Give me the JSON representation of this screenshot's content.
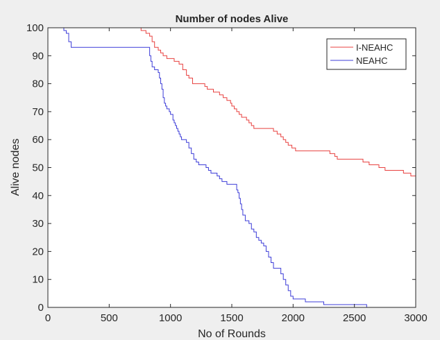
{
  "chart_data": {
    "type": "line",
    "title": "Number of nodes Alive",
    "xlabel": "No of Rounds",
    "ylabel": "Alive nodes",
    "xlim": [
      0,
      3000
    ],
    "ylim": [
      0,
      100
    ],
    "xticks": [
      0,
      500,
      1000,
      1500,
      2000,
      2500,
      3000
    ],
    "yticks": [
      0,
      10,
      20,
      30,
      40,
      50,
      60,
      70,
      80,
      90,
      100
    ],
    "grid": false,
    "legend_position": "top-right",
    "series": [
      {
        "name": "I-NEAHC",
        "color": "#e8403f",
        "step": true,
        "points": [
          [
            0,
            100
          ],
          [
            700,
            100
          ],
          [
            760,
            99
          ],
          [
            800,
            98
          ],
          [
            830,
            97
          ],
          [
            850,
            95
          ],
          [
            870,
            93
          ],
          [
            900,
            92
          ],
          [
            920,
            91
          ],
          [
            940,
            90
          ],
          [
            970,
            89
          ],
          [
            1000,
            89
          ],
          [
            1030,
            88
          ],
          [
            1070,
            87
          ],
          [
            1100,
            85
          ],
          [
            1130,
            83
          ],
          [
            1150,
            82
          ],
          [
            1180,
            80
          ],
          [
            1250,
            80
          ],
          [
            1280,
            79
          ],
          [
            1300,
            78
          ],
          [
            1350,
            77
          ],
          [
            1400,
            76
          ],
          [
            1430,
            75
          ],
          [
            1460,
            74
          ],
          [
            1490,
            73
          ],
          [
            1500,
            72
          ],
          [
            1520,
            71
          ],
          [
            1540,
            70
          ],
          [
            1560,
            69
          ],
          [
            1580,
            68
          ],
          [
            1620,
            67
          ],
          [
            1640,
            66
          ],
          [
            1660,
            65
          ],
          [
            1680,
            64
          ],
          [
            1800,
            64
          ],
          [
            1840,
            63
          ],
          [
            1870,
            62
          ],
          [
            1900,
            61
          ],
          [
            1920,
            60
          ],
          [
            1940,
            59
          ],
          [
            1960,
            58
          ],
          [
            1990,
            57
          ],
          [
            2020,
            56
          ],
          [
            2250,
            56
          ],
          [
            2300,
            55
          ],
          [
            2340,
            54
          ],
          [
            2360,
            53
          ],
          [
            2540,
            53
          ],
          [
            2570,
            52
          ],
          [
            2620,
            51
          ],
          [
            2700,
            50
          ],
          [
            2750,
            49
          ],
          [
            2880,
            49
          ],
          [
            2900,
            48
          ],
          [
            2960,
            47
          ],
          [
            3000,
            47
          ]
        ]
      },
      {
        "name": "NEAHC",
        "color": "#3c3cd8",
        "step": true,
        "points": [
          [
            0,
            100
          ],
          [
            110,
            100
          ],
          [
            130,
            99
          ],
          [
            150,
            98
          ],
          [
            170,
            95
          ],
          [
            190,
            93
          ],
          [
            820,
            93
          ],
          [
            830,
            90
          ],
          [
            840,
            88
          ],
          [
            850,
            86
          ],
          [
            870,
            85
          ],
          [
            900,
            84
          ],
          [
            910,
            82
          ],
          [
            920,
            80
          ],
          [
            930,
            78
          ],
          [
            940,
            75
          ],
          [
            950,
            73
          ],
          [
            960,
            72
          ],
          [
            970,
            71
          ],
          [
            990,
            70
          ],
          [
            1000,
            69
          ],
          [
            1020,
            67
          ],
          [
            1030,
            66
          ],
          [
            1040,
            65
          ],
          [
            1050,
            64
          ],
          [
            1060,
            63
          ],
          [
            1070,
            62
          ],
          [
            1080,
            61
          ],
          [
            1090,
            60
          ],
          [
            1130,
            59
          ],
          [
            1150,
            57
          ],
          [
            1170,
            55
          ],
          [
            1190,
            53
          ],
          [
            1210,
            52
          ],
          [
            1230,
            51
          ],
          [
            1270,
            51
          ],
          [
            1290,
            50
          ],
          [
            1310,
            49
          ],
          [
            1330,
            48
          ],
          [
            1380,
            47
          ],
          [
            1400,
            46
          ],
          [
            1420,
            45
          ],
          [
            1460,
            44
          ],
          [
            1520,
            44
          ],
          [
            1540,
            42
          ],
          [
            1550,
            41
          ],
          [
            1560,
            39
          ],
          [
            1570,
            37
          ],
          [
            1580,
            35
          ],
          [
            1590,
            33
          ],
          [
            1610,
            31
          ],
          [
            1640,
            30
          ],
          [
            1660,
            28
          ],
          [
            1680,
            27
          ],
          [
            1700,
            25
          ],
          [
            1720,
            24
          ],
          [
            1740,
            23
          ],
          [
            1760,
            22
          ],
          [
            1780,
            20
          ],
          [
            1800,
            18
          ],
          [
            1820,
            16
          ],
          [
            1840,
            14
          ],
          [
            1880,
            14
          ],
          [
            1900,
            12
          ],
          [
            1920,
            10
          ],
          [
            1940,
            8
          ],
          [
            1960,
            6
          ],
          [
            1980,
            4
          ],
          [
            2000,
            3
          ],
          [
            2070,
            3
          ],
          [
            2100,
            2
          ],
          [
            2200,
            2
          ],
          [
            2250,
            1
          ],
          [
            2550,
            1
          ],
          [
            2600,
            0
          ],
          [
            3000,
            0
          ]
        ]
      }
    ]
  }
}
